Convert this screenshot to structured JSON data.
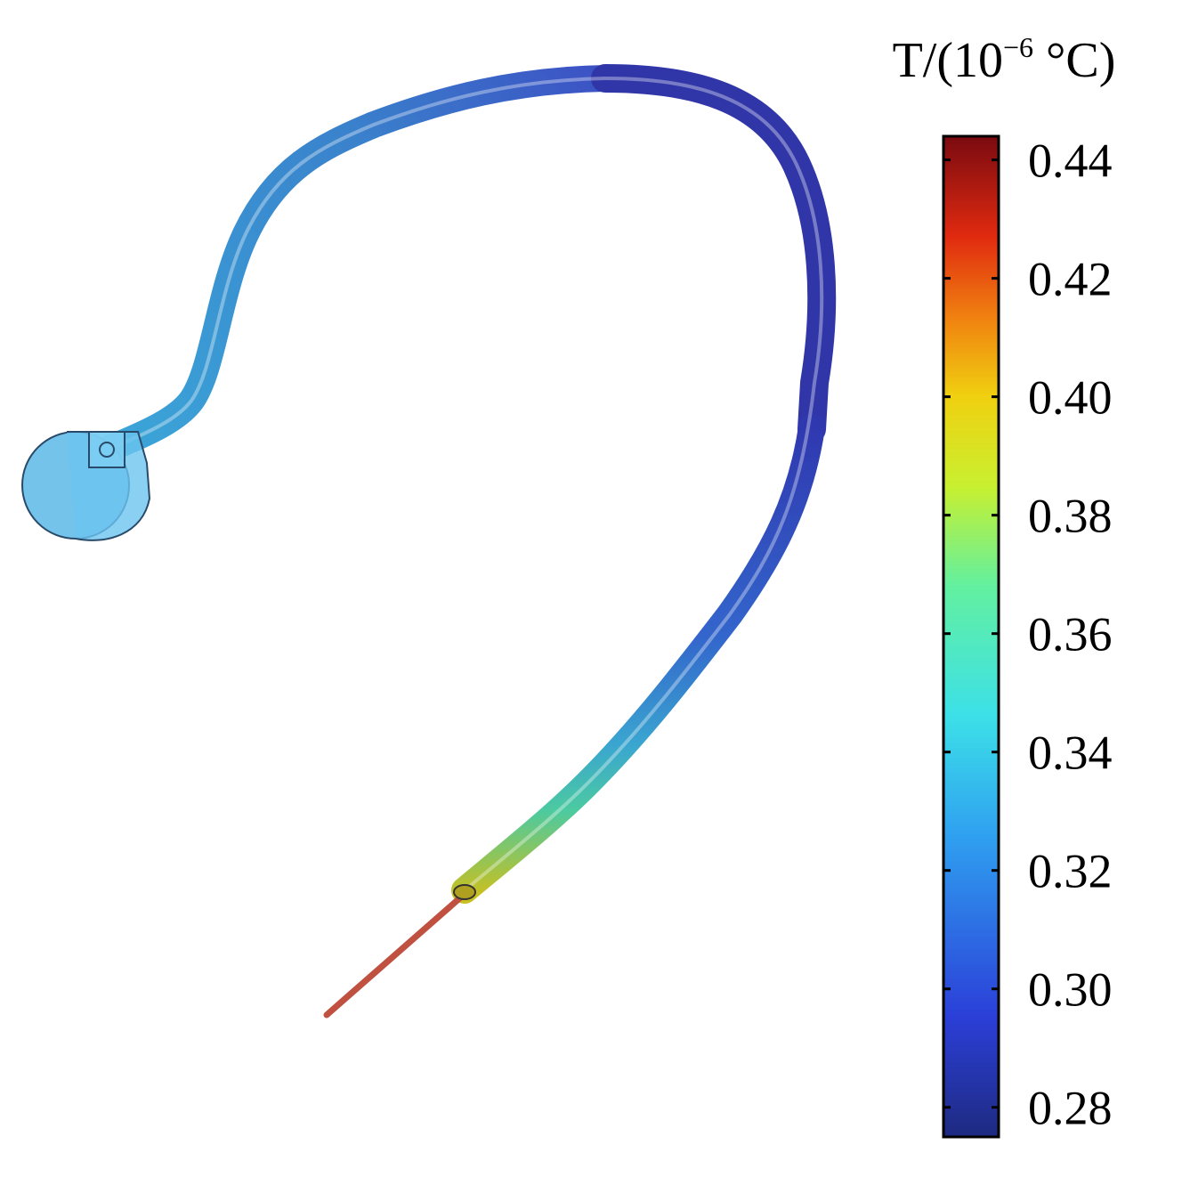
{
  "chart_data": {
    "type": "colorbar",
    "title": "T/(10",
    "title_superscript": "−6",
    "title_end": " °C)",
    "range": [
      0.275,
      0.444
    ],
    "ticks": [
      0.28,
      {
        "value": 0.3,
        "label": "0.30"
      },
      0.32,
      0.34,
      0.36,
      0.38,
      {
        "value": 0.4,
        "label": "0.40"
      },
      0.42,
      0.44
    ]
  }
}
